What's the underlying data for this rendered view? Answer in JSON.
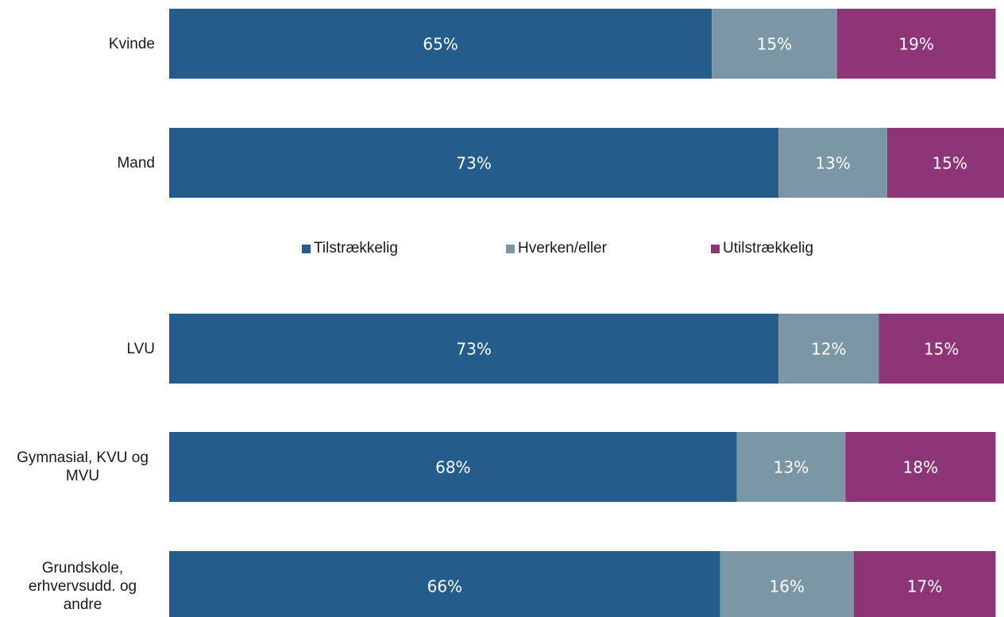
{
  "chart_data": {
    "type": "bar",
    "orientation": "horizontal",
    "stacked": true,
    "categories": [
      "Kvinde",
      "Mand",
      "LVU",
      "Gymnasial, KVU og MVU",
      "Grundskole, erhvervsudd. og andre"
    ],
    "series": [
      {
        "name": "Tilstrækkelig",
        "color": "#245d8c",
        "values": [
          65,
          73,
          73,
          68,
          66
        ]
      },
      {
        "name": "Hverken/eller",
        "color": "#7b97a5",
        "values": [
          15,
          13,
          12,
          13,
          16
        ]
      },
      {
        "name": "Utilstrækkelig",
        "color": "#8e3577",
        "values": [
          19,
          15,
          15,
          18,
          17
        ]
      }
    ],
    "value_labels": [
      [
        "65%",
        "73%",
        "73%",
        "68%",
        "66%"
      ],
      [
        "15%",
        "13%",
        "12%",
        "13%",
        "16%"
      ],
      [
        "19%",
        "15%",
        "15%",
        "18%",
        "17%"
      ]
    ],
    "xlim": [
      0,
      100
    ],
    "legend": "center"
  }
}
